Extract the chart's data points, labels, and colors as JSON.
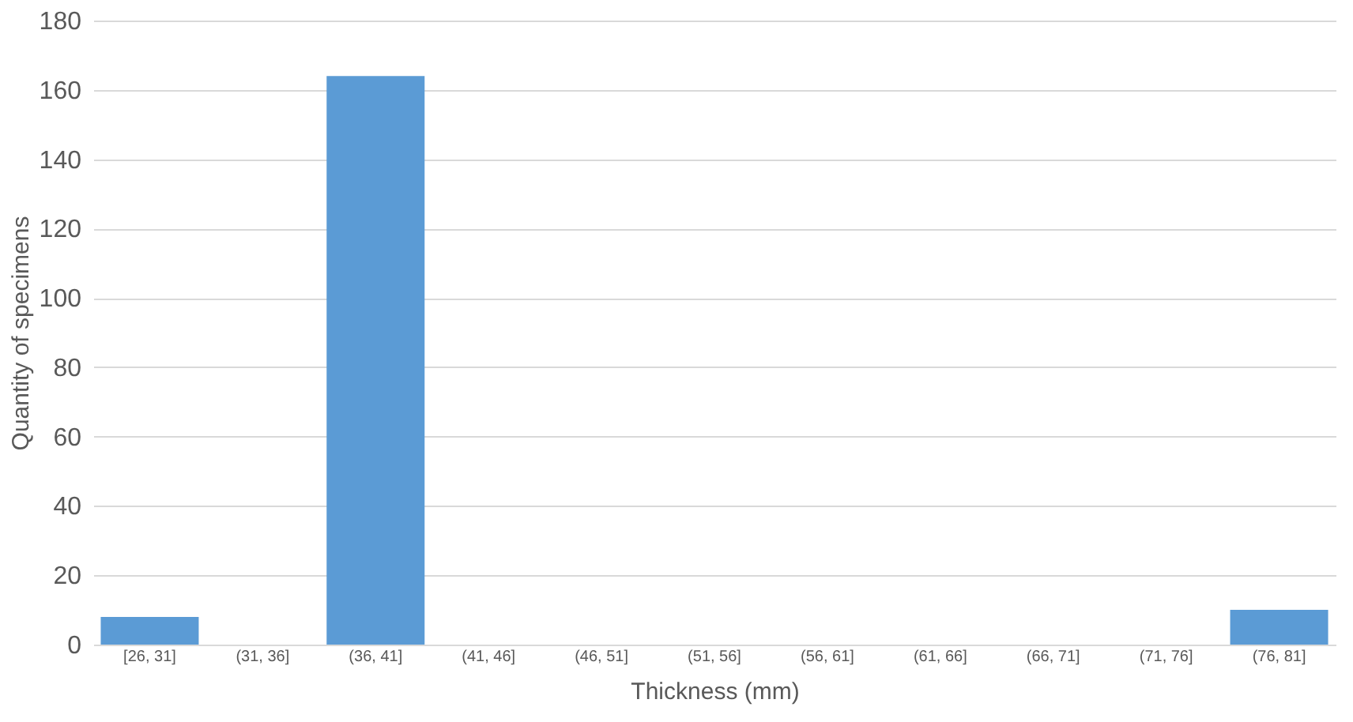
{
  "chart_data": {
    "type": "bar",
    "xlabel": "Thickness (mm)",
    "ylabel": "Quantity of specimens",
    "categories": [
      "[26, 31]",
      "(31, 36]",
      "(36, 41]",
      "(41, 46]",
      "(46, 51]",
      "(51, 56]",
      "(56, 61]",
      "(61, 66]",
      "(66, 71]",
      "(71, 76]",
      "(76, 81]"
    ],
    "values": [
      8,
      0,
      164,
      0,
      0,
      0,
      0,
      0,
      0,
      0,
      10
    ],
    "color": "#5b9bd5",
    "ylim": [
      0,
      180
    ],
    "yticks": [
      0,
      20,
      40,
      60,
      80,
      100,
      120,
      140,
      160,
      180
    ],
    "grid": "y"
  }
}
